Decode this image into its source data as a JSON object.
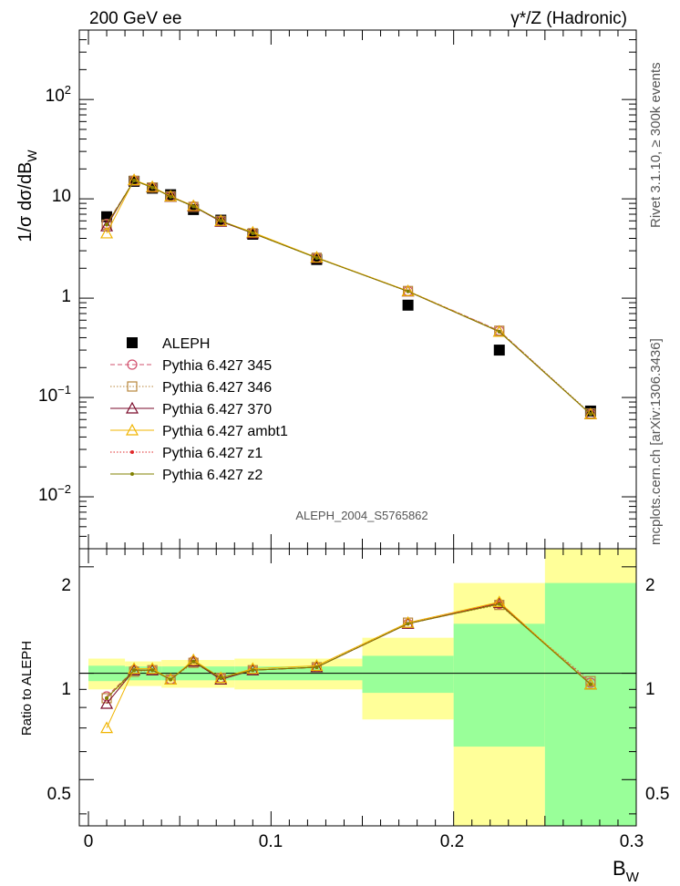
{
  "header": {
    "left": "200 GeV ee",
    "right": "γ*/Z (Hadronic)"
  },
  "side_text": {
    "top": "Rivet 3.1.10, ≥ 300k events",
    "bottom": "mcplots.cern.ch [arXiv:1306.3436]"
  },
  "watermark": "ALEPH_2004_S5765862",
  "chart_data": [
    {
      "type": "scatter",
      "ylabel": "1/σ  dσ/dB_W",
      "yscale": "log",
      "ylim": [
        0.003,
        500
      ],
      "xlim": [
        -0.005,
        0.3
      ],
      "ytick_labels": [
        "10^-2",
        "10^-1",
        "1",
        "10",
        "10^2"
      ],
      "legend_position": "lower-left",
      "x": [
        0.01,
        0.025,
        0.035,
        0.045,
        0.0575,
        0.0725,
        0.09,
        0.125,
        0.175,
        0.225,
        0.275
      ],
      "series": [
        {
          "name": "ALEPH",
          "color": "#000000",
          "marker": "filled-square",
          "line": "none",
          "values": [
            6.6,
            15.0,
            12.8,
            11.0,
            7.8,
            6.1,
            4.4,
            2.45,
            0.85,
            0.3,
            0.073
          ]
        },
        {
          "name": "Pythia 6.427 345",
          "color": "#d2506e",
          "marker": "open-circle",
          "line": "dashed",
          "values": [
            5.6,
            15.3,
            13.0,
            10.6,
            8.4,
            6.0,
            4.5,
            2.55,
            1.18,
            0.47,
            0.068
          ]
        },
        {
          "name": "Pythia 6.427 346",
          "color": "#b8863b",
          "marker": "open-square",
          "line": "dotted",
          "values": [
            5.5,
            15.2,
            13.0,
            10.6,
            8.3,
            6.0,
            4.5,
            2.55,
            1.18,
            0.47,
            0.069
          ]
        },
        {
          "name": "Pythia 6.427 370",
          "color": "#7a0a2a",
          "marker": "open-triangle",
          "line": "solid",
          "values": [
            5.3,
            15.4,
            13.1,
            10.5,
            8.4,
            5.9,
            4.5,
            2.55,
            1.17,
            0.46,
            0.068
          ]
        },
        {
          "name": "Pythia 6.427 ambt1",
          "color": "#f0b400",
          "marker": "open-triangle",
          "line": "solid",
          "values": [
            4.5,
            15.5,
            13.2,
            10.6,
            8.5,
            6.0,
            4.6,
            2.57,
            1.18,
            0.46,
            0.068
          ]
        },
        {
          "name": "Pythia 6.427 z1",
          "color": "#e0282a",
          "marker": "small-dot",
          "line": "dotted",
          "values": [
            5.5,
            15.3,
            13.0,
            10.6,
            8.4,
            6.0,
            4.5,
            2.55,
            1.17,
            0.46,
            0.068
          ]
        },
        {
          "name": "Pythia 6.427 z2",
          "color": "#808000",
          "marker": "small-dot",
          "line": "solid",
          "values": [
            5.5,
            15.3,
            13.0,
            10.5,
            8.4,
            6.0,
            4.5,
            2.54,
            1.17,
            0.46,
            0.068
          ]
        }
      ]
    },
    {
      "type": "scatter",
      "ylabel": "Ratio to ALEPH",
      "xlabel": "B_W",
      "ylim": [
        0.37,
        2.25
      ],
      "xlim": [
        -0.005,
        0.3
      ],
      "ytick_labels": [
        "0.5",
        "1",
        "2"
      ],
      "xtick_labels": [
        "0",
        "0.1",
        "0.2",
        "0.3"
      ],
      "bands": [
        {
          "x0": 0.0,
          "x1": 0.02,
          "inner": [
            0.95,
            1.05
          ],
          "outer": [
            0.9,
            1.1
          ]
        },
        {
          "x0": 0.02,
          "x1": 0.04,
          "inner": [
            0.955,
            1.045
          ],
          "outer": [
            0.92,
            1.08
          ]
        },
        {
          "x0": 0.04,
          "x1": 0.08,
          "inner": [
            0.955,
            1.045
          ],
          "outer": [
            0.91,
            1.09
          ]
        },
        {
          "x0": 0.08,
          "x1": 0.15,
          "inner": [
            0.955,
            1.045
          ],
          "outer": [
            0.9,
            1.1
          ]
        },
        {
          "x0": 0.15,
          "x1": 0.2,
          "inner": [
            0.88,
            1.12
          ],
          "outer": [
            0.74,
            1.26
          ]
        },
        {
          "x0": 0.2,
          "x1": 0.25,
          "inner": [
            0.62,
            1.38
          ],
          "outer": [
            0.25,
            1.8
          ]
        },
        {
          "x0": 0.25,
          "x1": 0.3,
          "inner": [
            0.2,
            1.8
          ],
          "outer": [
            0.1,
            2.5
          ]
        }
      ],
      "x": [
        0.01,
        0.025,
        0.035,
        0.045,
        0.0575,
        0.0725,
        0.09,
        0.125,
        0.175,
        0.225,
        0.275
      ],
      "series": [
        {
          "name": "Pythia 6.427 345",
          "color": "#d2506e",
          "marker": "open-circle",
          "line": "dashed",
          "values": [
            0.86,
            1.02,
            1.02,
            0.96,
            1.08,
            0.97,
            1.02,
            1.04,
            1.38,
            1.57,
            0.94
          ]
        },
        {
          "name": "Pythia 6.427 346",
          "color": "#b8863b",
          "marker": "open-square",
          "line": "dotted",
          "values": [
            0.85,
            1.01,
            1.02,
            0.96,
            1.07,
            0.97,
            1.02,
            1.04,
            1.39,
            1.56,
            0.95
          ]
        },
        {
          "name": "Pythia 6.427 370",
          "color": "#7a0a2a",
          "marker": "open-triangle",
          "line": "solid",
          "values": [
            0.82,
            1.02,
            1.02,
            0.96,
            1.08,
            0.96,
            1.02,
            1.04,
            1.38,
            1.58,
            0.93
          ]
        },
        {
          "name": "Pythia 6.427 ambt1",
          "color": "#f0b400",
          "marker": "open-triangle",
          "line": "solid",
          "values": [
            0.7,
            1.03,
            1.03,
            0.96,
            1.09,
            0.97,
            1.03,
            1.05,
            1.39,
            1.59,
            0.93
          ]
        },
        {
          "name": "Pythia 6.427 z1",
          "color": "#e0282a",
          "marker": "small-dot",
          "line": "dotted",
          "values": [
            0.85,
            1.02,
            1.02,
            0.96,
            1.08,
            0.97,
            1.02,
            1.04,
            1.38,
            1.58,
            0.93
          ]
        },
        {
          "name": "Pythia 6.427 z2",
          "color": "#808000",
          "marker": "small-dot",
          "line": "solid",
          "values": [
            0.85,
            1.02,
            1.02,
            0.96,
            1.08,
            0.97,
            1.02,
            1.04,
            1.38,
            1.57,
            0.93
          ]
        }
      ]
    }
  ]
}
